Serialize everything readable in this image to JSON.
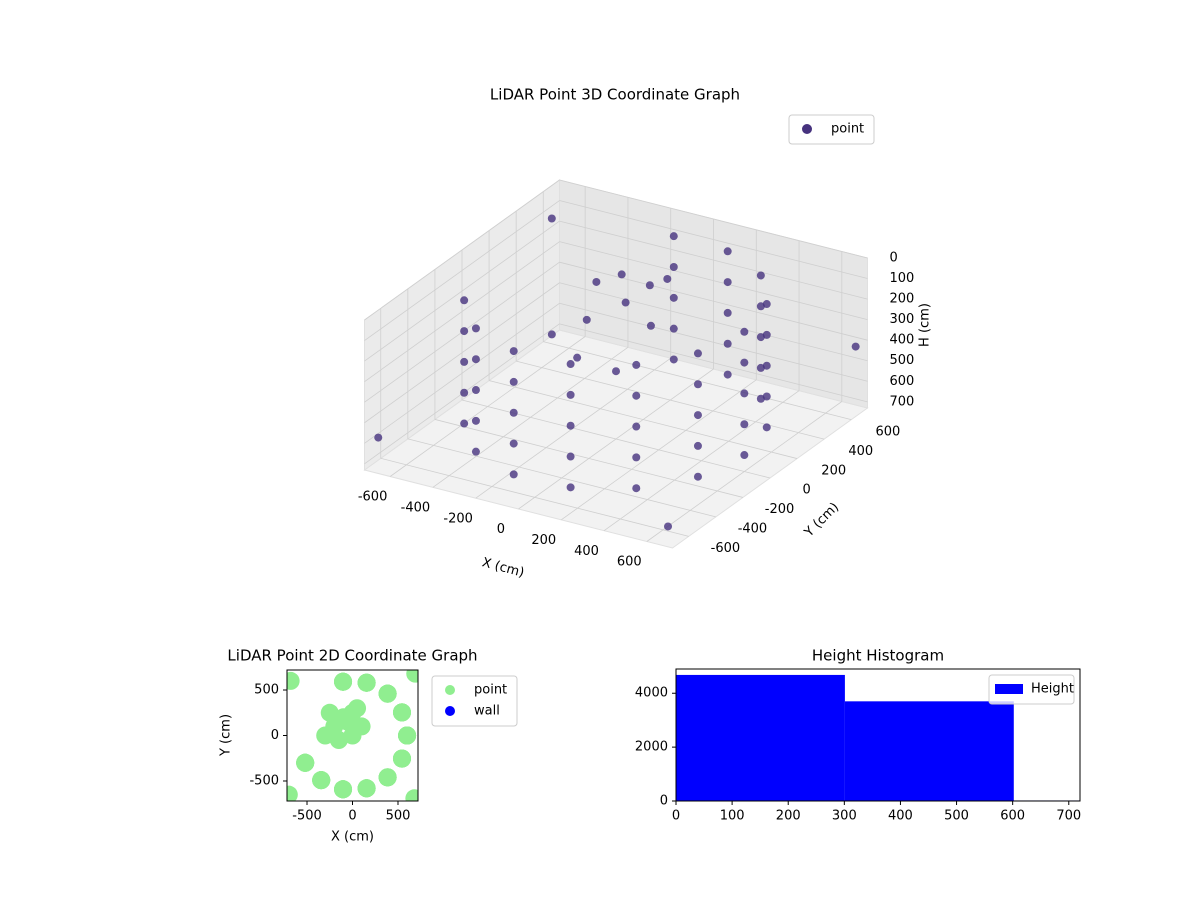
{
  "chart_data": [
    {
      "type": "scatter3d",
      "title": "LiDAR Point 3D Coordinate Graph",
      "xlabel": "X (cm)",
      "ylabel": "Y (cm)",
      "zlabel": "H (cm)",
      "xlim": [
        -720,
        720
      ],
      "ylim": [
        -720,
        720
      ],
      "zlim": [
        730,
        0
      ],
      "xticks": [
        -600,
        -400,
        -200,
        0,
        200,
        400,
        600
      ],
      "yticks": [
        -600,
        -400,
        -200,
        0,
        200,
        400,
        600
      ],
      "zticks": [
        0,
        100,
        200,
        300,
        400,
        500,
        600,
        700
      ],
      "grid": true,
      "legend": "upper right",
      "series": [
        {
          "name": "point",
          "color": "#46327e",
          "x": [
            -520,
            -344,
            -104,
            155,
            386,
            544,
            600,
            544,
            386,
            155,
            -104,
            -520,
            -344,
            -104,
            155,
            386,
            544,
            600,
            544,
            386,
            155,
            -104,
            -520,
            -344,
            -104,
            155,
            386,
            544,
            600,
            544,
            386,
            155,
            -104,
            -520,
            -344,
            -104,
            155,
            386,
            544,
            600,
            544,
            386,
            155,
            -104,
            -520,
            -344,
            -104,
            155,
            386,
            544,
            600,
            544,
            386,
            155,
            -104,
            -100,
            0,
            -50,
            50,
            -200,
            -300,
            -150,
            100,
            -250,
            0,
            -700,
            -680,
            690,
            680
          ],
          "y": [
            -300,
            -491,
            -591,
            -580,
            -460,
            -254,
            0,
            254,
            460,
            580,
            591,
            -300,
            -491,
            -591,
            -580,
            -460,
            -254,
            0,
            254,
            460,
            580,
            591,
            -300,
            -491,
            -591,
            -580,
            -460,
            -254,
            0,
            254,
            460,
            580,
            591,
            -300,
            -491,
            -591,
            -580,
            -460,
            -254,
            0,
            254,
            460,
            580,
            591,
            -300,
            -491,
            -591,
            -580,
            -460,
            -254,
            0,
            254,
            460,
            580,
            591,
            200,
            250,
            150,
            300,
            100,
            0,
            -50,
            100,
            250,
            0,
            -650,
            600,
            680,
            -690
          ],
          "z": [
            50,
            50,
            50,
            50,
            50,
            50,
            50,
            50,
            50,
            50,
            50,
            200,
            200,
            200,
            200,
            200,
            200,
            200,
            200,
            200,
            200,
            200,
            350,
            350,
            350,
            350,
            350,
            350,
            350,
            350,
            350,
            350,
            350,
            500,
            500,
            500,
            500,
            500,
            500,
            500,
            500,
            500,
            500,
            500,
            650,
            650,
            650,
            650,
            650,
            650,
            650,
            650,
            650,
            650,
            650,
            50,
            100,
            150,
            80,
            250,
            300,
            350,
            200,
            150,
            400,
            600,
            120,
            420,
            650
          ]
        }
      ]
    },
    {
      "type": "scatter",
      "title": "LiDAR Point 2D Coordinate Graph",
      "xlabel": "X (cm)",
      "ylabel": "Y (cm)",
      "xlim": [
        -720,
        720
      ],
      "ylim": [
        -720,
        720
      ],
      "xticks": [
        -500,
        0,
        500
      ],
      "yticks": [
        -500,
        0,
        500
      ],
      "legend": "outside right",
      "series": [
        {
          "name": "point",
          "color": "lightgreen",
          "x": [
            -520,
            -344,
            -104,
            155,
            386,
            544,
            600,
            544,
            386,
            155,
            -104,
            -520,
            -344,
            -104,
            155,
            386,
            544,
            600,
            544,
            386,
            155,
            -104,
            -520,
            -344,
            -104,
            155,
            386,
            544,
            600,
            544,
            386,
            155,
            -104,
            -520,
            -344,
            -104,
            155,
            386,
            544,
            600,
            544,
            386,
            155,
            -104,
            -520,
            -344,
            -104,
            155,
            386,
            544,
            600,
            544,
            386,
            155,
            -104,
            -100,
            0,
            -50,
            50,
            -200,
            -300,
            -150,
            100,
            -250,
            0,
            -700,
            -680,
            690,
            680
          ],
          "y": [
            -300,
            -491,
            -591,
            -580,
            -460,
            -254,
            0,
            254,
            460,
            580,
            591,
            -300,
            -491,
            -591,
            -580,
            -460,
            -254,
            0,
            254,
            460,
            580,
            591,
            -300,
            -491,
            -591,
            -580,
            -460,
            -254,
            0,
            254,
            460,
            580,
            591,
            -300,
            -491,
            -591,
            -580,
            -460,
            -254,
            0,
            254,
            460,
            580,
            591,
            -300,
            -491,
            -591,
            -580,
            -460,
            -254,
            0,
            254,
            460,
            580,
            591,
            200,
            250,
            150,
            300,
            100,
            0,
            -50,
            100,
            250,
            0,
            -650,
            600,
            680,
            -690
          ]
        },
        {
          "name": "wall",
          "color": "blue",
          "x": [],
          "y": []
        }
      ]
    },
    {
      "type": "histogram",
      "title": "Height Histogram",
      "bins": [
        0,
        301,
        602,
        903
      ],
      "xlim": [
        0,
        720
      ],
      "ylim": [
        0,
        4900
      ],
      "xticks": [
        0,
        100,
        200,
        300,
        400,
        500,
        600,
        700
      ],
      "yticks": [
        0,
        2000,
        4000
      ],
      "legend": "upper right",
      "series": [
        {
          "name": "Height",
          "color": "blue",
          "values": [
            4680,
            3700,
            20
          ]
        }
      ]
    }
  ]
}
